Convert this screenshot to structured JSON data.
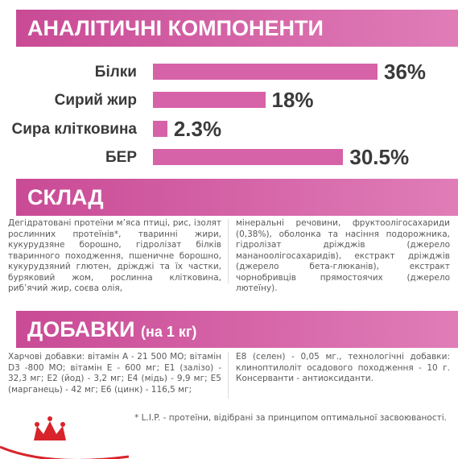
{
  "headers": {
    "analysis": "АНАЛІТИЧНІ КОМПОНЕНТИ",
    "composition": "СКЛАД",
    "additives": "ДОБАВКИ",
    "additives_note": "(на 1 кг)"
  },
  "chart_data": {
    "type": "bar",
    "orientation": "horizontal",
    "color": "#d662a8",
    "categories": [
      "Білки",
      "Сирий жир",
      "Сира клітковина",
      "БЕР"
    ],
    "values": [
      36,
      18,
      2.3,
      30.5
    ],
    "value_labels": [
      "36%",
      "18%",
      "2.3%",
      "30.5%"
    ]
  },
  "composition": [
    "Дегідратовані протеїни м’яса птиці, рис, ізолят рослинних протеїнів*, тваринні жири, кукурудзяне борошно, гідролізат білків тваринного походження, пшеничне борошно, кукурудзяний глютен, дріжджі та їх частки, буряковий жом, рослинна клітковина, риб’ячий жир, соєва олія,",
    "мінеральні речовини, фруктоолігосахариди (0,38%), оболонка та насіння подорожника, гідролізат дріжджів (джерело мананоолігосахаридів), екстракт дріжджів (джерело бета-глюканів), екстракт чорнобривців прямостоячих (джерело лютеїну)."
  ],
  "additives": [
    "Харчові добавки: вітамін А - 21 500 МО; вітамін D3 -800 МО; вітамін Е - 600 мг; Е1 (залізо) - 32,3 мг; Е2 (йод) - 3,2 мг; Е4 (мідь) - 9,9 мг; Е5 (марганець) - 42 мг; Е6 (цинк) - 116,5 мг;",
    "Е8 (селен) - 0,05 мг., технологічні добавки: клиноптилоліт осадового походження - 10 г. Консерванти - антиоксиданти."
  ],
  "footnote": "* L.I.P. - протеїни, відібрані за принципом оптимальної засвоюваності."
}
